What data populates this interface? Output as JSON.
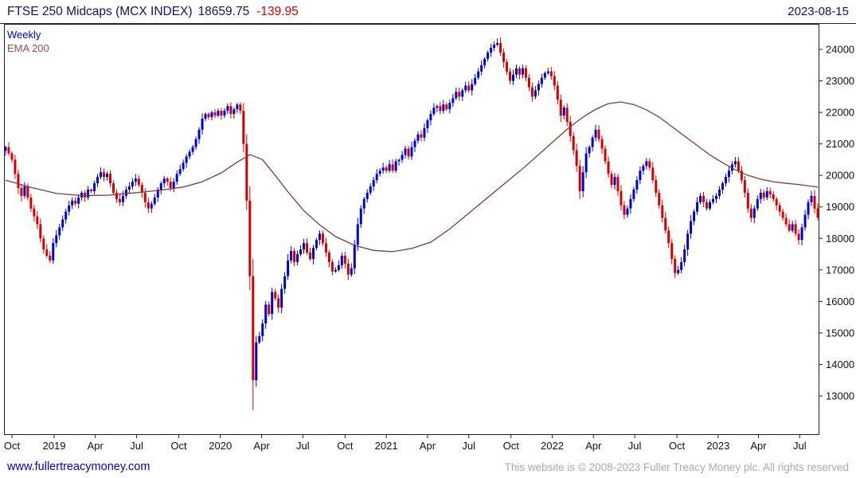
{
  "header": {
    "title": "FTSE 250 Midcaps (MCX INDEX)",
    "price": "18659.75",
    "change": "-139.95",
    "date": "2023-08-15"
  },
  "legend": {
    "series_label": "Weekly",
    "overlay_label": "EMA 200"
  },
  "footer": {
    "link": "www.fullertreacymoney.com",
    "copyright": "This website is © 2008-2023 Fuller Treacy Money plc. All rights reserved"
  },
  "colors": {
    "title": "#121266",
    "date": "#121266",
    "change": "#d40000",
    "up": "#0000cd",
    "down": "#d40000",
    "ema": "#7d3c3c",
    "ema_label": "#a04848",
    "series_label": "#0000bb",
    "axis": "#222222",
    "axis_text": "#111111",
    "link": "#0000cc",
    "copyright": "#aaaaaa"
  },
  "chart_data": {
    "type": "candlestick",
    "interval": "weekly",
    "title": "FTSE 250 Midcaps (MCX INDEX)",
    "last_close": 18659.75,
    "change": -139.95,
    "as_of": "2023-08-15",
    "overlay": "EMA 200",
    "grid": false,
    "legend_position": "top-left",
    "ylim": [
      11786,
      24784
    ],
    "y_ticks": [
      13000,
      14000,
      15000,
      16000,
      17000,
      18000,
      19000,
      20000,
      21000,
      22000,
      23000,
      24000
    ],
    "weeks_total": 257,
    "x_labels": [
      {
        "label": "Oct",
        "week": 2
      },
      {
        "label": "2019",
        "week": 15.3
      },
      {
        "label": "Apr",
        "week": 28.3
      },
      {
        "label": "Jul",
        "week": 41.3
      },
      {
        "label": "Oct",
        "week": 54.6
      },
      {
        "label": "2020",
        "week": 67.7
      },
      {
        "label": "Apr",
        "week": 80.7
      },
      {
        "label": "Jul",
        "week": 93.7
      },
      {
        "label": "Oct",
        "week": 107
      },
      {
        "label": "2021",
        "week": 120
      },
      {
        "label": "Apr",
        "week": 133
      },
      {
        "label": "Jul",
        "week": 146
      },
      {
        "label": "Oct",
        "week": 159.3
      },
      {
        "label": "2022",
        "week": 172.3
      },
      {
        "label": "Apr",
        "week": 185.3
      },
      {
        "label": "Jul",
        "week": 198.3
      },
      {
        "label": "Oct",
        "week": 211.6
      },
      {
        "label": "2023",
        "week": 224.6
      },
      {
        "label": "Apr",
        "week": 237.3
      },
      {
        "label": "Jul",
        "week": 250.3
      }
    ],
    "closes": [
      20900,
      20700,
      20500,
      20050,
      19600,
      19350,
      19650,
      19300,
      18950,
      18700,
      18450,
      18000,
      17650,
      17450,
      17300,
      17850,
      18100,
      18350,
      18600,
      18850,
      19050,
      19200,
      19100,
      19300,
      19450,
      19300,
      19550,
      19500,
      19750,
      19950,
      20100,
      19950,
      20050,
      19750,
      19450,
      19250,
      19150,
      19350,
      19550,
      19650,
      19800,
      19900,
      19700,
      19450,
      19150,
      18950,
      19100,
      19300,
      19550,
      19750,
      19900,
      19800,
      19600,
      19800,
      20050,
      20200,
      20400,
      20600,
      20750,
      20900,
      21150,
      21450,
      21800,
      21950,
      21850,
      22000,
      21900,
      22050,
      21900,
      22050,
      22200,
      21950,
      22100,
      22250,
      22050,
      21000,
      19200,
      16800,
      13500,
      14700,
      14900,
      15300,
      15900,
      15600,
      16300,
      16100,
      15800,
      16400,
      16800,
      17300,
      17600,
      17250,
      17500,
      17650,
      17850,
      17550,
      17350,
      17700,
      17950,
      18150,
      17850,
      17550,
      17250,
      16950,
      17000,
      17150,
      17450,
      17200,
      16850,
      17050,
      17800,
      18450,
      18950,
      19250,
      19450,
      19650,
      19850,
      20050,
      20150,
      20250,
      20150,
      20350,
      20150,
      20450,
      20500,
      20650,
      20850,
      20600,
      20900,
      21100,
      21300,
      21200,
      21500,
      21750,
      21950,
      22150,
      22200,
      22050,
      22250,
      22100,
      22300,
      22450,
      22650,
      22500,
      22700,
      22850,
      22700,
      22900,
      23100,
      23300,
      23500,
      23700,
      23900,
      24050,
      24150,
      24200,
      23900,
      23600,
      23300,
      23000,
      23200,
      23400,
      23200,
      23400,
      23100,
      22800,
      22500,
      22700,
      22900,
      23100,
      23250,
      23300,
      23150,
      22850,
      22400,
      21900,
      22150,
      21700,
      21250,
      20800,
      20300,
      19500,
      20100,
      20700,
      20900,
      21200,
      21450,
      21150,
      20850,
      20450,
      20050,
      19700,
      19950,
      19500,
      19050,
      18750,
      18950,
      19250,
      19550,
      19850,
      20150,
      20300,
      20450,
      20250,
      19850,
      19450,
      19050,
      18650,
      18250,
      17850,
      17350,
      16900,
      17000,
      17250,
      17650,
      18150,
      18550,
      18850,
      19150,
      19350,
      19150,
      18950,
      19150,
      19250,
      19350,
      19550,
      19750,
      19950,
      20150,
      20350,
      20450,
      20150,
      19850,
      19450,
      18950,
      18650,
      18950,
      19250,
      19450,
      19300,
      19500,
      19400,
      19250,
      19050,
      18850,
      18650,
      18450,
      18250,
      18450,
      18150,
      17950,
      18350,
      18750,
      19150,
      19350,
      18950,
      18659.75
    ],
    "extremes": {
      "low": {
        "week": 78,
        "value": 12550
      },
      "high": {
        "week": 155,
        "value": 24350
      }
    },
    "ema": {
      "label": "EMA 200",
      "keypoints": [
        [
          0,
          19850
        ],
        [
          8,
          19620
        ],
        [
          16,
          19430
        ],
        [
          24,
          19360
        ],
        [
          32,
          19370
        ],
        [
          40,
          19440
        ],
        [
          48,
          19520
        ],
        [
          56,
          19630
        ],
        [
          62,
          19800
        ],
        [
          68,
          20080
        ],
        [
          73,
          20420
        ],
        [
          77,
          20660
        ],
        [
          81,
          20500
        ],
        [
          85,
          20000
        ],
        [
          89,
          19480
        ],
        [
          94,
          18880
        ],
        [
          99,
          18430
        ],
        [
          104,
          18060
        ],
        [
          110,
          17780
        ],
        [
          116,
          17620
        ],
        [
          122,
          17580
        ],
        [
          128,
          17680
        ],
        [
          134,
          17880
        ],
        [
          140,
          18300
        ],
        [
          146,
          18800
        ],
        [
          152,
          19300
        ],
        [
          158,
          19800
        ],
        [
          164,
          20300
        ],
        [
          169,
          20750
        ],
        [
          174,
          21200
        ],
        [
          178,
          21550
        ],
        [
          182,
          21850
        ],
        [
          186,
          22100
        ],
        [
          190,
          22280
        ],
        [
          194,
          22330
        ],
        [
          198,
          22250
        ],
        [
          202,
          22080
        ],
        [
          206,
          21850
        ],
        [
          210,
          21550
        ],
        [
          214,
          21250
        ],
        [
          218,
          20950
        ],
        [
          222,
          20650
        ],
        [
          226,
          20400
        ],
        [
          230,
          20180
        ],
        [
          234,
          20000
        ],
        [
          238,
          19880
        ],
        [
          242,
          19800
        ],
        [
          246,
          19750
        ],
        [
          250,
          19710
        ],
        [
          256,
          19630
        ]
      ]
    }
  }
}
